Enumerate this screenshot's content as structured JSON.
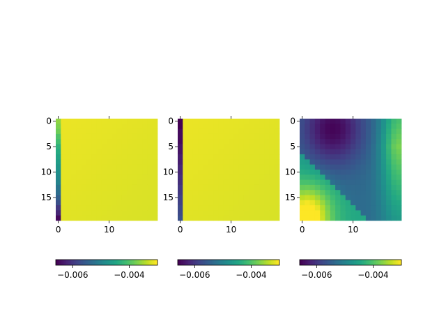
{
  "chart_data": [
    {
      "type": "heatmap",
      "rows": 20,
      "cols": 20,
      "xticks": [
        0,
        10
      ],
      "yticks": [
        0,
        5,
        10,
        15
      ],
      "vmin": -0.0066,
      "vmax": -0.003,
      "colorbar_ticks": [
        -0.006,
        -0.004
      ],
      "colorbar_ticklabels": [
        "−0.006",
        "−0.004"
      ],
      "field": "col0",
      "column0": [
        -0.0036,
        -0.0037,
        -0.0038,
        -0.004,
        -0.0041,
        -0.0043,
        -0.0044,
        -0.0045,
        -0.0046,
        -0.0047,
        -0.0048,
        -0.0049,
        -0.005,
        -0.0052,
        -0.0053,
        -0.0055,
        -0.0057,
        -0.006,
        -0.0062,
        -0.0065
      ],
      "background": -0.0031
    },
    {
      "type": "heatmap",
      "rows": 20,
      "cols": 20,
      "xticks": [
        0,
        10
      ],
      "yticks": [
        0,
        5,
        10,
        15
      ],
      "vmin": -0.0066,
      "vmax": -0.003,
      "colorbar_ticks": [
        -0.006,
        -0.004
      ],
      "colorbar_ticklabels": [
        "−0.006",
        "−0.004"
      ],
      "field": "col0",
      "column0": [
        -0.0066,
        -0.0066,
        -0.0065,
        -0.0065,
        -0.0065,
        -0.0064,
        -0.0064,
        -0.0063,
        -0.0063,
        -0.0062,
        -0.0062,
        -0.0061,
        -0.0061,
        -0.006,
        -0.006,
        -0.0059,
        -0.0059,
        -0.0058,
        -0.0058,
        -0.0057
      ],
      "background": -0.0031
    },
    {
      "type": "heatmap",
      "rows": 20,
      "cols": 20,
      "xticks": [
        0,
        10
      ],
      "yticks": [
        0,
        5,
        10,
        15
      ],
      "vmin": -0.0066,
      "vmax": -0.003,
      "colorbar_ticks": [
        -0.006,
        -0.004
      ],
      "colorbar_ticklabels": [
        "−0.006",
        "−0.004"
      ],
      "field": "smooth",
      "description": "smooth field: low (dark) near top-center, high (yellow) at bottom-left and teal at right"
    }
  ]
}
